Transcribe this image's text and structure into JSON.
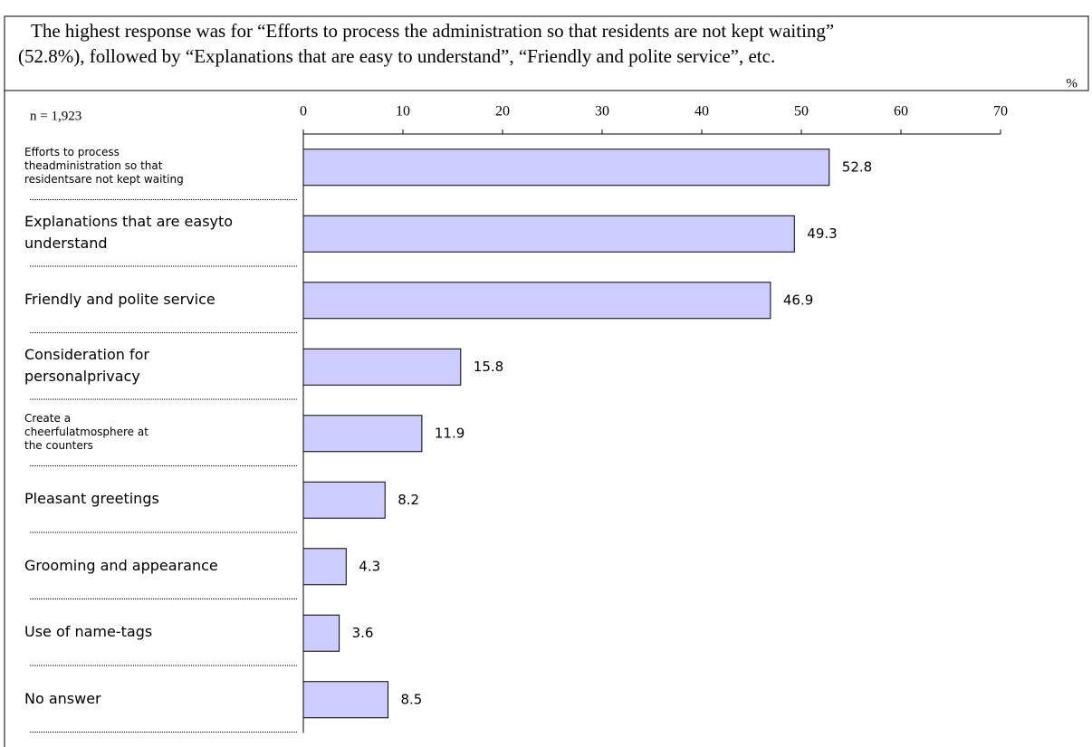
{
  "chart_data": {
    "type": "bar",
    "orientation": "horizontal",
    "subtitle": "The highest response was for “Efforts to process the administration so that residents are not kept waiting”\n(52.8%), followed by “Explanations that are easy to understand”, “Friendly and polite service”, etc.",
    "unit": "%",
    "note": "n = 1,923",
    "categories": [
      "Efforts to process\ntheadministration so that\nresidentsare not kept waiting",
      "Explanations that are easyto\nunderstand",
      "Friendly and polite service",
      "Consideration for\npersonalprivacy",
      "Create a\ncheerfulatmosphere at\nthe counters",
      "Pleasant greetings",
      "Grooming and appearance",
      "Use of name-tags",
      "No answer"
    ],
    "values": [
      52.8,
      49.3,
      46.9,
      15.8,
      11.9,
      8.2,
      4.3,
      3.6,
      8.5
    ],
    "color": "#ccccff",
    "xlim": [
      0,
      70
    ],
    "xticks": [
      0,
      10,
      20,
      30,
      40,
      50,
      60,
      70
    ]
  }
}
